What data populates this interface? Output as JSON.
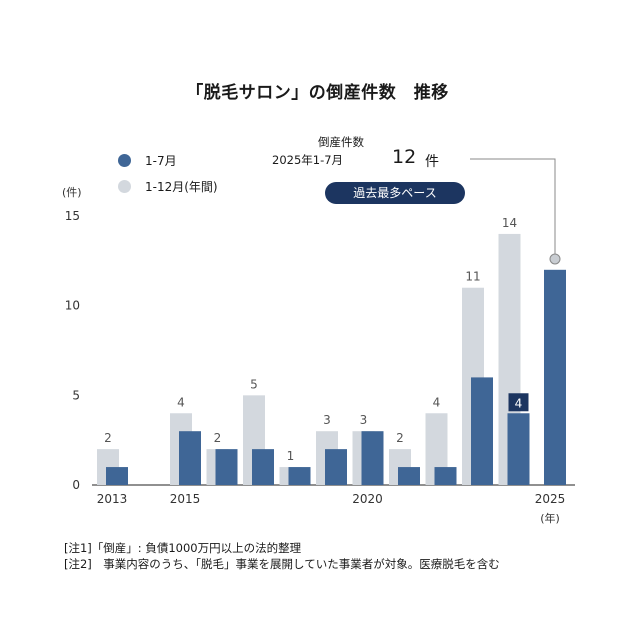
{
  "title": "「脱毛サロン」の倒産件数　推移",
  "legend": [
    {
      "label": "1-7月",
      "color": "#3f6696"
    },
    {
      "label": "1-12月(年間)",
      "color": "#d3d8de"
    }
  ],
  "annotation": {
    "heading": "倒産件数",
    "period": "2025年1-7月",
    "count": "12",
    "unit": "件",
    "badge": "過去最多ペース"
  },
  "notes": [
    "[注1]「倒産」: 負債1000万円以上の法的整理",
    "[注2]　事業内容のうち、「脱毛」事業を展開していた事業者が対象。医療脱毛を含む"
  ],
  "chart_data": {
    "type": "bar",
    "y_unit_label": "(件)",
    "x_unit_label": "(年)",
    "ylim": [
      0,
      15
    ],
    "yticks": [
      0,
      5,
      10,
      15
    ],
    "x_tick_labels": [
      {
        "year": 2013,
        "label": "2013"
      },
      {
        "year": 2015,
        "label": "2015"
      },
      {
        "year": 2020,
        "label": "2020"
      },
      {
        "year": 2025,
        "label": "2025"
      }
    ],
    "years": [
      2013,
      2014,
      2015,
      2016,
      2017,
      2018,
      2019,
      2020,
      2021,
      2022,
      2023,
      2024,
      2025
    ],
    "series": [
      {
        "name": "1-12月(年間)",
        "color": "#d3d8de",
        "values": [
          2,
          0,
          4,
          2,
          5,
          1,
          3,
          3,
          2,
          4,
          11,
          14,
          null
        ],
        "labels": [
          "2",
          "",
          "4",
          "2",
          "5",
          "1",
          "3",
          "3",
          "2",
          "4",
          "11",
          "14",
          ""
        ]
      },
      {
        "name": "1-7月",
        "color": "#3f6696",
        "values": [
          1,
          0,
          3,
          2,
          2,
          1,
          2,
          3,
          1,
          1,
          6,
          4,
          12
        ],
        "labels": [
          "",
          "",
          "",
          "",
          "",
          "",
          "",
          "",
          "",
          "",
          "",
          "4",
          ""
        ]
      }
    ]
  }
}
